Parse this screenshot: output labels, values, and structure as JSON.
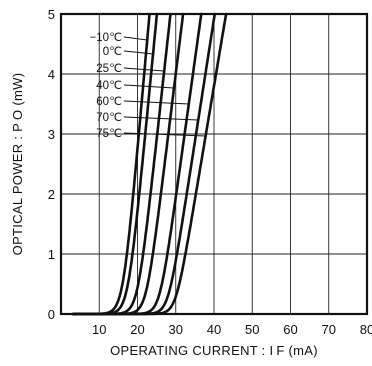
{
  "chart_data": {
    "type": "line",
    "xlabel": "OPERATING  CURRENT : I F  (mA)",
    "ylabel": "OPTICAL  POWER : P O  (mW)",
    "xlim": [
      0,
      80
    ],
    "ylim": [
      0,
      5
    ],
    "x_ticks": [
      "10",
      "20",
      "30",
      "40",
      "50",
      "60",
      "70",
      "80"
    ],
    "y_ticks": [
      "0",
      "1",
      "2",
      "3",
      "4",
      "5"
    ],
    "grid": true,
    "series": [
      {
        "name": "−10℃",
        "threshold": 16.2,
        "slope_mw_per_ma": 0.72
      },
      {
        "name": "0℃",
        "threshold": 17.5,
        "slope_mw_per_ma": 0.66
      },
      {
        "name": "25℃",
        "threshold": 20.0,
        "slope_mw_per_ma": 0.58
      },
      {
        "name": "40℃",
        "threshold": 22.3,
        "slope_mw_per_ma": 0.52
      },
      {
        "name": "60℃",
        "threshold": 25.8,
        "slope_mw_per_ma": 0.46
      },
      {
        "name": "70℃",
        "threshold": 28.0,
        "slope_mw_per_ma": 0.41
      },
      {
        "name": "75℃",
        "threshold": 30.0,
        "slope_mw_per_ma": 0.38
      }
    ]
  }
}
